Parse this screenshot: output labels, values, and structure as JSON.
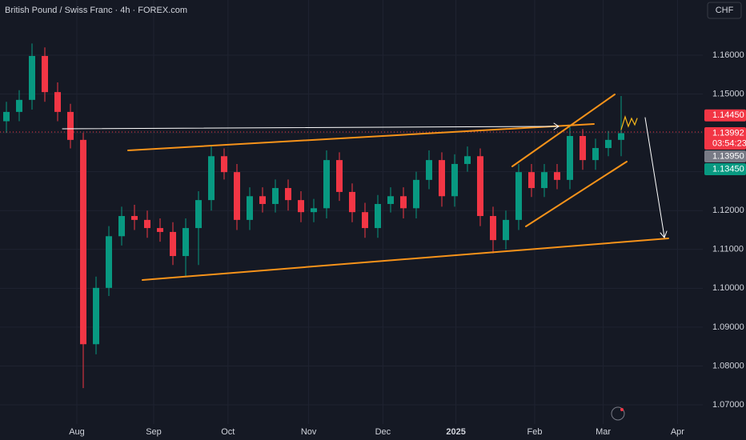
{
  "chart_data": {
    "type": "candlestick",
    "title": "British Pound / Swiss Franc · 4h · FOREX.com",
    "currency_button": "CHF",
    "up_color": "#089981",
    "down_color": "#f23645",
    "categories": [
      null,
      null,
      null,
      null,
      null,
      null,
      null,
      null,
      null,
      null,
      null,
      null,
      null,
      null,
      null,
      null,
      null,
      null,
      null,
      null,
      null,
      null,
      null,
      null,
      null,
      null,
      null,
      null,
      null,
      null,
      null,
      null,
      null,
      null,
      null,
      null,
      null,
      null,
      null,
      null,
      null,
      null,
      null,
      null,
      null,
      null,
      null,
      null,
      null
    ],
    "open": [
      1.143,
      1.1454,
      1.1485,
      1.1598,
      1.1505,
      1.1454,
      1.1382,
      1.0856,
      1.1001,
      1.1134,
      1.1186,
      1.1176,
      1.1155,
      1.1145,
      1.1083,
      1.1155,
      1.1227,
      1.134,
      1.1299,
      1.1176,
      1.1237,
      1.1217,
      1.1258,
      1.1227,
      1.1196,
      1.1206,
      1.133,
      1.1248,
      1.1196,
      1.1155,
      1.1217,
      1.1237,
      1.1206,
      1.1279,
      1.133,
      1.1237,
      1.132,
      1.134,
      1.1186,
      1.1124,
      1.1176,
      1.1299,
      1.1258,
      1.1299,
      1.1279,
      1.1392,
      1.133,
      1.1361,
      1.1382
    ],
    "high": [
      1.148,
      1.151,
      1.163,
      1.162,
      1.153,
      1.1475,
      1.14,
      1.103,
      1.116,
      1.121,
      1.1215,
      1.12,
      1.118,
      1.117,
      1.118,
      1.125,
      1.1365,
      1.136,
      1.132,
      1.126,
      1.126,
      1.128,
      1.128,
      1.125,
      1.123,
      1.1355,
      1.135,
      1.127,
      1.122,
      1.124,
      1.126,
      1.126,
      1.13,
      1.1355,
      1.135,
      1.1345,
      1.1365,
      1.136,
      1.121,
      1.12,
      1.132,
      1.132,
      1.132,
      1.132,
      1.1415,
      1.141,
      1.1385,
      1.1405,
      1.1495
    ],
    "low": [
      1.14,
      1.143,
      1.146,
      1.148,
      1.143,
      1.136,
      1.0743,
      1.083,
      1.098,
      1.111,
      1.115,
      1.113,
      1.112,
      1.106,
      1.103,
      1.106,
      1.12,
      1.128,
      1.115,
      1.115,
      1.1195,
      1.1195,
      1.12,
      1.117,
      1.117,
      1.118,
      1.1225,
      1.117,
      1.113,
      1.113,
      1.1195,
      1.118,
      1.118,
      1.1255,
      1.121,
      1.121,
      1.13,
      1.116,
      1.109,
      1.11,
      1.115,
      1.1235,
      1.1235,
      1.1255,
      1.1255,
      1.1305,
      1.1305,
      1.134,
      1.134
    ],
    "close": [
      1.1454,
      1.1485,
      1.1598,
      1.1505,
      1.1454,
      1.1382,
      1.0856,
      1.1001,
      1.1134,
      1.1186,
      1.1176,
      1.1155,
      1.1145,
      1.1083,
      1.1155,
      1.1227,
      1.134,
      1.1299,
      1.1176,
      1.1237,
      1.1217,
      1.1258,
      1.1227,
      1.1196,
      1.1206,
      1.133,
      1.1248,
      1.1196,
      1.1155,
      1.1217,
      1.1237,
      1.1206,
      1.1279,
      1.133,
      1.1237,
      1.132,
      1.134,
      1.1186,
      1.1124,
      1.1176,
      1.1299,
      1.1258,
      1.1299,
      1.1279,
      1.1392,
      1.133,
      1.1361,
      1.1382,
      1.13992
    ],
    "xlim": [
      -0.5,
      54.375
    ],
    "xticks": [
      {
        "value": 5.5,
        "label": "Aug"
      },
      {
        "value": 11.5,
        "label": "Sep"
      },
      {
        "value": 17.3,
        "label": "Oct"
      },
      {
        "value": 23.6,
        "label": "Nov"
      },
      {
        "value": 29.4,
        "label": "Dec"
      },
      {
        "value": 35.1,
        "label": "2025"
      },
      {
        "value": 41.25,
        "label": "Feb"
      },
      {
        "value": 46.6,
        "label": "Mar"
      },
      {
        "value": 52.4,
        "label": "Apr"
      }
    ],
    "ylim": [
      1.06506,
      1.17421
    ],
    "yticks": [
      {
        "value": 1.07,
        "label": "1.07000"
      },
      {
        "value": 1.08,
        "label": "1.08000"
      },
      {
        "value": 1.09,
        "label": "1.09000"
      },
      {
        "value": 1.1,
        "label": "1.10000"
      },
      {
        "value": 1.11,
        "label": "1.11000"
      },
      {
        "value": 1.12,
        "label": "1.12000"
      },
      {
        "value": 1.13,
        "label": "1.13000"
      },
      {
        "value": 1.14,
        "label": "1.14000"
      },
      {
        "value": 1.15,
        "label": "1.15000"
      },
      {
        "value": 1.16,
        "label": "1.16000"
      }
    ],
    "grid": true,
    "price_tags": [
      {
        "value": 1.1445,
        "label": "1.14450",
        "color": "#f23645"
      },
      {
        "value": 1.13992,
        "label": "1.13992",
        "sublabel": "03:54:23",
        "color": "#f23645"
      },
      {
        "value": 1.1395,
        "label": "1.13950",
        "color": "#787b86"
      },
      {
        "value": 1.1345,
        "label": "1.13450",
        "color": "#089981"
      }
    ]
  }
}
